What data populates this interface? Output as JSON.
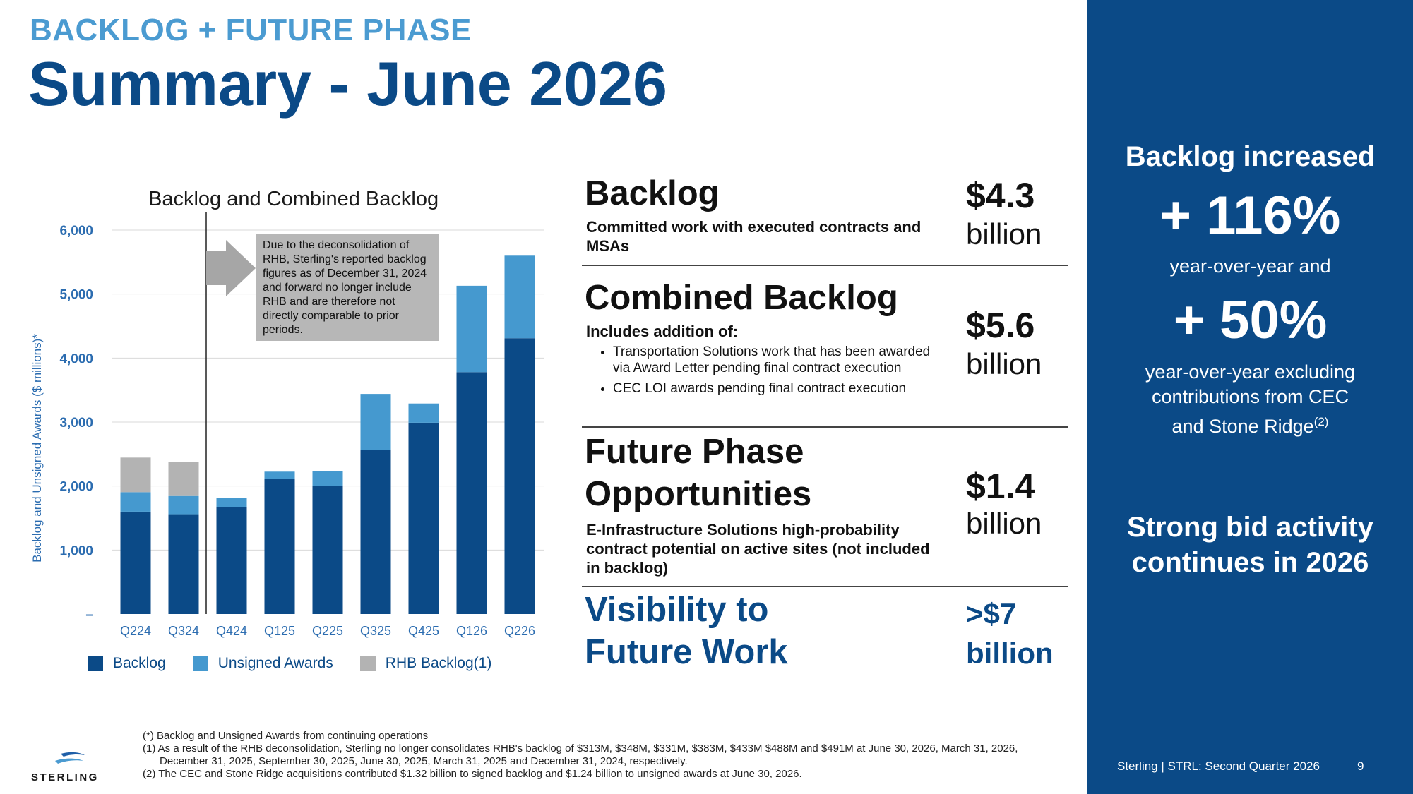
{
  "header": {
    "eyebrow": "BACKLOG + FUTURE PHASE",
    "title": "Summary - June 2026"
  },
  "chart_data": {
    "type": "bar",
    "stacked": true,
    "title": "Backlog and Combined Backlog",
    "xlabel": "",
    "ylabel": "Backlog and Unsigned Awards ($ millions)*",
    "ylim": [
      0,
      6000
    ],
    "yticks": [
      0,
      1000,
      2000,
      3000,
      4000,
      5000,
      6000
    ],
    "ytick_labels": [
      "–",
      "1,000",
      "2,000",
      "3,000",
      "4,000",
      "5,000",
      "6,000"
    ],
    "grid": true,
    "legend_position": "bottom",
    "categories": [
      "Q224",
      "Q324",
      "Q424",
      "Q125",
      "Q225",
      "Q325",
      "Q425",
      "Q126",
      "Q226"
    ],
    "series": [
      {
        "name": "Backlog",
        "color": "#0b4a87",
        "values": [
          1600,
          1560,
          1670,
          2110,
          2000,
          2560,
          2990,
          3780,
          4310
        ]
      },
      {
        "name": "Unsigned Awards",
        "color": "#4599cf",
        "values": [
          305,
          285,
          140,
          115,
          230,
          880,
          300,
          1350,
          1290
        ]
      },
      {
        "name": "RHB Backlog(1)",
        "color": "#b3b3b3",
        "values": [
          540,
          530,
          0,
          0,
          0,
          0,
          0,
          0,
          0
        ]
      }
    ],
    "annotation": "Due to the deconsolidation of RHB, Sterling's reported backlog figures as of December 31, 2024 and forward no longer include RHB and are therefore not directly comparable to prior periods."
  },
  "sections": {
    "backlog": {
      "title": "Backlog",
      "sub": "Committed work with executed contracts and MSAs",
      "amount": "$4.3",
      "unit": "billion"
    },
    "combined": {
      "title": "Combined Backlog",
      "sub": "Includes addition of:",
      "bullets": [
        "Transportation Solutions work that has been awarded via Award Letter pending final contract execution",
        "CEC LOI awards pending final contract execution"
      ],
      "amount": "$5.6",
      "unit": "billion"
    },
    "future": {
      "title_line1": "Future Phase",
      "title_line2": "Opportunities",
      "sub": "E-Infrastructure Solutions high-probability contract potential on active sites (not included in backlog)",
      "amount": "$1.4",
      "unit": "billion"
    },
    "visibility": {
      "title_line1": "Visibility to",
      "title_line2": "Future Work",
      "amount": ">$7",
      "unit": "billion"
    }
  },
  "right_panel": {
    "heading": "Backlog increased",
    "stat1": "+ 116%",
    "stat1_caption": "year-over-year and",
    "stat2": "+ 50%",
    "stat2_caption_line1": "year-over-year excluding",
    "stat2_caption_line2": "contributions from CEC",
    "stat2_caption_line3": "and Stone Ridge",
    "stat2_sup": "(2)",
    "bid_line1": "Strong bid activity",
    "bid_line2": "continues in 2026",
    "color": "#0b4a87"
  },
  "footnotes": {
    "star": "(*) Backlog and Unsigned Awards from continuing operations",
    "one_a": "(1) As a result of the RHB deconsolidation, Sterling no longer consolidates RHB's backlog of $313M, $348M,  $331M, $383M, $433M $488M and $491M at June 30, 2026, March 31, 2026,",
    "one_b": "December 31, 2025,  September 30, 2025, June 30, 2025, March 31, 2025 and December 31, 2024, respectively.",
    "two": "(2) The CEC and Stone Ridge acquisitions contributed $1.32 billion to signed backlog and $1.24 billion to unsigned awards at June 30, 2026."
  },
  "footer": {
    "logo_text": "STERLING",
    "company": "Sterling | STRL:  Second Quarter  2026",
    "page": "9"
  }
}
